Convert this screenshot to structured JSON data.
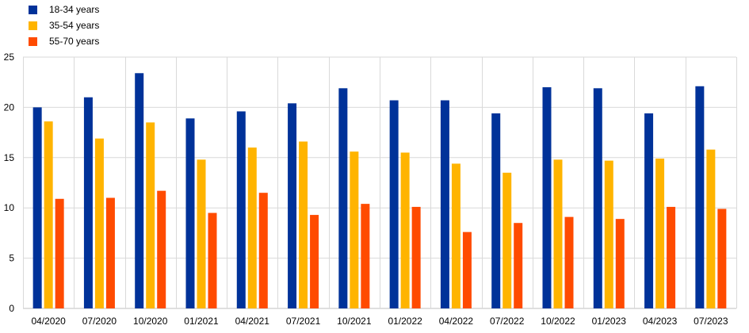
{
  "chart_data": {
    "type": "bar",
    "categories": [
      "04/2020",
      "07/2020",
      "10/2020",
      "01/2021",
      "04/2021",
      "07/2021",
      "10/2021",
      "01/2022",
      "04/2022",
      "07/2022",
      "10/2022",
      "01/2023",
      "04/2023",
      "07/2023"
    ],
    "series": [
      {
        "name": "18-34 years",
        "color": "#003299",
        "values": [
          20.0,
          21.0,
          23.4,
          18.9,
          19.6,
          20.4,
          21.9,
          20.7,
          20.7,
          19.4,
          22.0,
          21.9,
          19.4,
          22.1
        ]
      },
      {
        "name": "35-54 years",
        "color": "#FFB400",
        "values": [
          18.6,
          16.9,
          18.5,
          14.8,
          16.0,
          16.6,
          15.6,
          15.5,
          14.4,
          13.5,
          14.8,
          14.7,
          14.9,
          15.8
        ]
      },
      {
        "name": "55-70 years",
        "color": "#FF4B00",
        "values": [
          10.9,
          11.0,
          11.7,
          9.5,
          11.5,
          9.3,
          10.4,
          10.1,
          7.6,
          8.5,
          9.1,
          8.9,
          10.1,
          9.9
        ]
      }
    ],
    "yticks": [
      0,
      5,
      10,
      15,
      20,
      25
    ],
    "ylim": [
      0,
      25
    ],
    "title": "",
    "xlabel": "",
    "ylabel": "",
    "grid": true,
    "legend_position": "top-left"
  }
}
